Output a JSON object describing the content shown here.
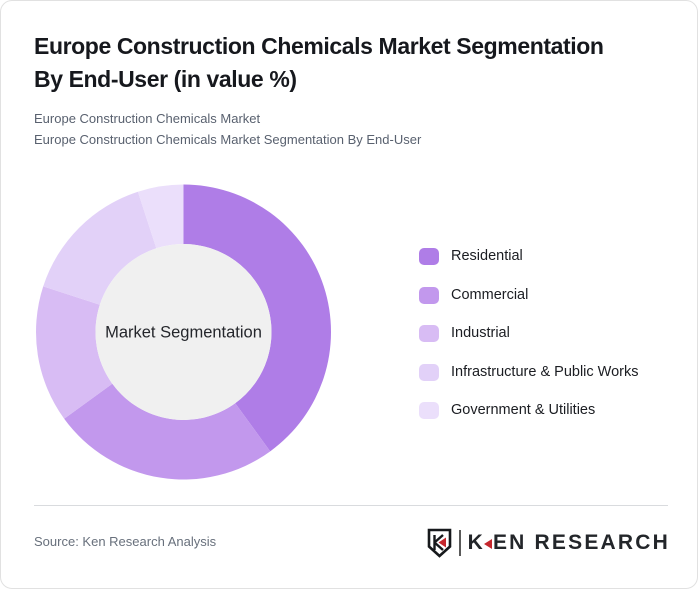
{
  "header": {
    "title_lines": [
      "Europe Construction Chemicals Market Segmentation",
      "By End-User (in value %)"
    ],
    "subtitle_lines": [
      "Europe Construction Chemicals Market",
      "Europe Construction Chemicals Market Segmentation By End-User"
    ]
  },
  "chart_data": {
    "type": "pie",
    "variant": "donut",
    "title": "Europe Construction Chemicals Market Segmentation By End-User (in value %)",
    "center_label": "Market Segmentation",
    "unit": "value %",
    "start_angle_deg": 0,
    "direction": "clockwise",
    "inner_radius_ratio": 0.6,
    "inner_fill": "#f0f0f0",
    "legend_position": "right",
    "segments": [
      {
        "label": "Residential",
        "value": 40,
        "color": "#af7de7"
      },
      {
        "label": "Commercial",
        "value": 25,
        "color": "#c298ed"
      },
      {
        "label": "Industrial",
        "value": 15,
        "color": "#d8bcf4"
      },
      {
        "label": "Infrastructure & Public Works",
        "value": 15,
        "color": "#e2d1f8"
      },
      {
        "label": "Government & Utilities",
        "value": 5,
        "color": "#ebdffb"
      }
    ]
  },
  "footer": {
    "source": "Source: Ken Research Analysis",
    "logo": {
      "shield_letter": "K",
      "wordmark_k": "K",
      "wordmark_rest": "EN RESEARCH",
      "accent_color": "#c5272d"
    }
  }
}
